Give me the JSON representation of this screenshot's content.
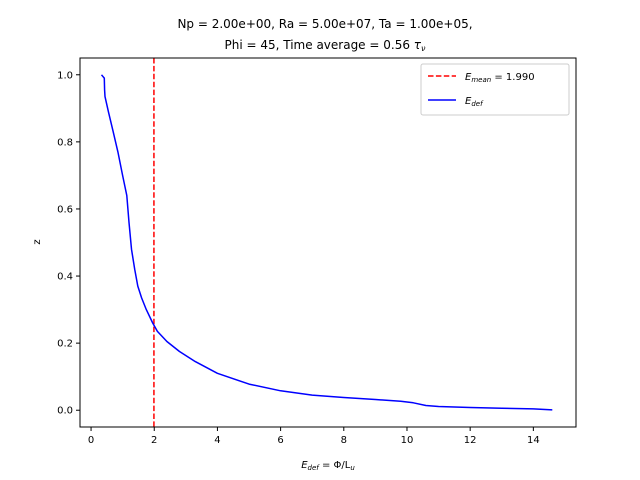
{
  "chart_data": {
    "type": "line",
    "title_line1": "Np = 2.00e+00, Ra = 5.00e+07, Ta = 1.00e+05,",
    "title_line2_prefix": "Phi = 45, Time average = 0.56 ",
    "title_line2_symbol": "τ",
    "title_line2_sub": "ν",
    "xlabel": {
      "main": "E",
      "sub": "def",
      "rest": " = Φ/L",
      "sub2": "u"
    },
    "ylabel": "z",
    "xlim": [
      -0.35,
      15.35
    ],
    "ylim": [
      -0.05,
      1.05
    ],
    "xticks": [
      0,
      2,
      4,
      6,
      8,
      10,
      12,
      14
    ],
    "yticks": [
      0.0,
      0.2,
      0.4,
      0.6,
      0.8,
      1.0
    ],
    "xtick_labels": [
      "0",
      "2",
      "4",
      "6",
      "8",
      "10",
      "12",
      "14"
    ],
    "ytick_labels": [
      "0.0",
      "0.2",
      "0.4",
      "0.6",
      "0.8",
      "1.0"
    ],
    "series": [
      {
        "name": "E_def",
        "color": "#0000ff",
        "style": "solid",
        "points": [
          [
            0.33,
            1.0
          ],
          [
            0.42,
            0.99
          ],
          [
            0.43,
            0.955
          ],
          [
            0.44,
            0.935
          ],
          [
            0.55,
            0.89
          ],
          [
            0.7,
            0.83
          ],
          [
            0.85,
            0.77
          ],
          [
            1.0,
            0.7
          ],
          [
            1.13,
            0.64
          ],
          [
            1.2,
            0.56
          ],
          [
            1.28,
            0.48
          ],
          [
            1.38,
            0.42
          ],
          [
            1.48,
            0.37
          ],
          [
            1.6,
            0.335
          ],
          [
            1.75,
            0.3
          ],
          [
            1.95,
            0.26
          ],
          [
            2.1,
            0.235
          ],
          [
            2.4,
            0.205
          ],
          [
            2.8,
            0.175
          ],
          [
            3.3,
            0.145
          ],
          [
            4.0,
            0.11
          ],
          [
            5.0,
            0.078
          ],
          [
            6.0,
            0.058
          ],
          [
            7.0,
            0.045
          ],
          [
            8.0,
            0.038
          ],
          [
            9.0,
            0.032
          ],
          [
            9.8,
            0.027
          ],
          [
            10.2,
            0.022
          ],
          [
            10.6,
            0.014
          ],
          [
            11.0,
            0.011
          ],
          [
            12.0,
            0.008
          ],
          [
            13.0,
            0.006
          ],
          [
            14.0,
            0.004
          ],
          [
            14.6,
            0.001
          ]
        ]
      }
    ],
    "vline": {
      "x": 1.99,
      "color": "#ff0000",
      "style": "dashed"
    },
    "legend": {
      "position": "top-right",
      "entries": [
        {
          "main": "E",
          "sub": "mean",
          "rest": " = 1.990",
          "color": "#ff0000",
          "style": "dashed"
        },
        {
          "main": "E",
          "sub": "def",
          "rest": "",
          "color": "#0000ff",
          "style": "solid"
        }
      ]
    }
  }
}
